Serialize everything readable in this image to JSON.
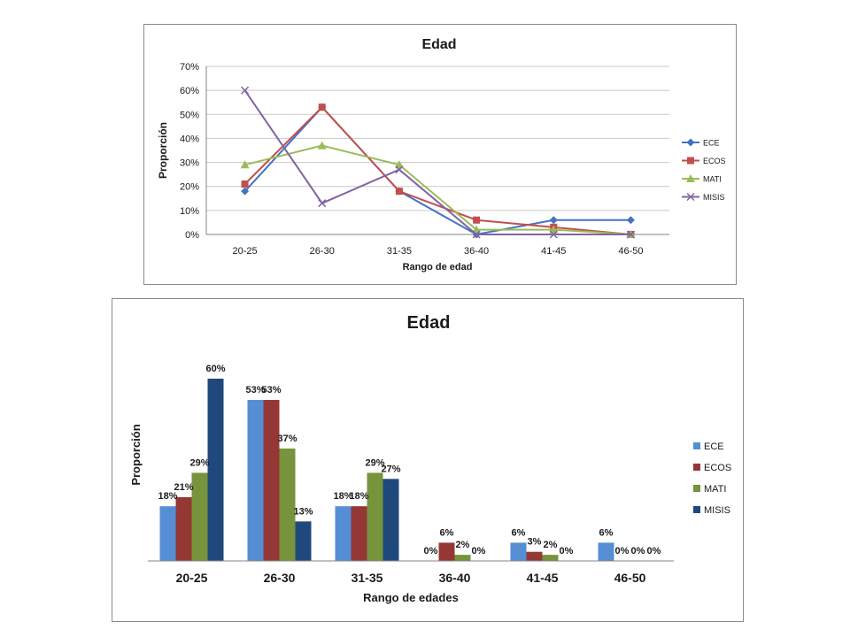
{
  "chart_data": [
    {
      "type": "line",
      "title": "Edad",
      "xlabel": "Rango de edad",
      "ylabel": "Proporción",
      "categories": [
        "20-25",
        "26-30",
        "31-35",
        "36-40",
        "41-45",
        "46-50"
      ],
      "ylim": [
        0,
        0.7
      ],
      "yticks": [
        "0%",
        "10%",
        "20%",
        "30%",
        "40%",
        "50%",
        "60%",
        "70%"
      ],
      "grid": true,
      "legend_position": "right",
      "series": [
        {
          "name": "ECE",
          "color": "#4472C4",
          "marker": "diamond",
          "values": [
            0.18,
            0.53,
            0.18,
            0.0,
            0.06,
            0.06
          ]
        },
        {
          "name": "ECOS",
          "color": "#C0504D",
          "marker": "square",
          "values": [
            0.21,
            0.53,
            0.18,
            0.06,
            0.03,
            0.0
          ]
        },
        {
          "name": "MATI",
          "color": "#9BBB59",
          "marker": "triangle",
          "values": [
            0.29,
            0.37,
            0.29,
            0.02,
            0.02,
            0.0
          ]
        },
        {
          "name": "MISIS",
          "color": "#8064A2",
          "marker": "x",
          "values": [
            0.6,
            0.13,
            0.27,
            0.0,
            0.0,
            0.0
          ]
        }
      ]
    },
    {
      "type": "bar",
      "title": "Edad",
      "xlabel": "Rango de edades",
      "ylabel": "Proporción",
      "categories": [
        "20-25",
        "26-30",
        "31-35",
        "36-40",
        "41-45",
        "46-50"
      ],
      "ylim": [
        0,
        0.6
      ],
      "grid": false,
      "legend_position": "right",
      "series": [
        {
          "name": "ECE",
          "color": "#558ED5",
          "values": [
            0.18,
            0.53,
            0.18,
            0.0,
            0.06,
            0.06
          ],
          "labels": [
            "18%",
            "53%",
            "18%",
            "0%",
            "6%",
            "6%"
          ]
        },
        {
          "name": "ECOS",
          "color": "#953735",
          "values": [
            0.21,
            0.53,
            0.18,
            0.06,
            0.03,
            0.0
          ],
          "labels": [
            "21%",
            "53%",
            "18%",
            "6%",
            "3%",
            "0%"
          ]
        },
        {
          "name": "MATI",
          "color": "#77933C",
          "values": [
            0.29,
            0.37,
            0.29,
            0.02,
            0.02,
            0.0
          ],
          "labels": [
            "29%",
            "37%",
            "29%",
            "2%",
            "2%",
            "0%"
          ]
        },
        {
          "name": "MISIS",
          "color": "#1F497D",
          "values": [
            0.6,
            0.13,
            0.27,
            0.0,
            0.0,
            0.0
          ],
          "labels": [
            "60%",
            "13%",
            "27%",
            "0%",
            "0%",
            "0%"
          ]
        }
      ]
    }
  ]
}
